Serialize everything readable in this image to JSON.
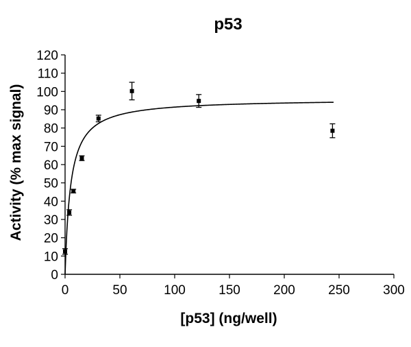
{
  "chart_data": {
    "type": "scatter",
    "title": "p53",
    "xlabel": "[p53] (ng/well)",
    "ylabel": "Activity (% max signal)",
    "xlim": [
      0,
      300
    ],
    "ylim": [
      0,
      120
    ],
    "x_ticks": [
      "0",
      "50",
      "100",
      "150",
      "200",
      "250",
      "300"
    ],
    "y_ticks": [
      "0",
      "10",
      "20",
      "30",
      "40",
      "50",
      "60",
      "70",
      "80",
      "90",
      "100",
      "110",
      "120"
    ],
    "grid": false,
    "series": [
      {
        "points": [
          {
            "x": 0,
            "y": 12.5,
            "err": 1.5
          },
          {
            "x": 3.8,
            "y": 33.8,
            "err": 1.5
          },
          {
            "x": 7.6,
            "y": 45.5,
            "err": 1.0
          },
          {
            "x": 15.3,
            "y": 63.5,
            "err": 1.3
          },
          {
            "x": 30.5,
            "y": 85.2,
            "err": 1.8
          },
          {
            "x": 61,
            "y": 100.2,
            "err": 4.8
          },
          {
            "x": 122,
            "y": 94.8,
            "err": 3.5
          },
          {
            "x": 244,
            "y": 78.5,
            "err": 3.8
          }
        ]
      }
    ],
    "fit_curve": {
      "model": "Vmax*x/(Kd+x)",
      "vmax": 96,
      "kd": 5,
      "x_range": [
        0,
        245
      ]
    }
  }
}
